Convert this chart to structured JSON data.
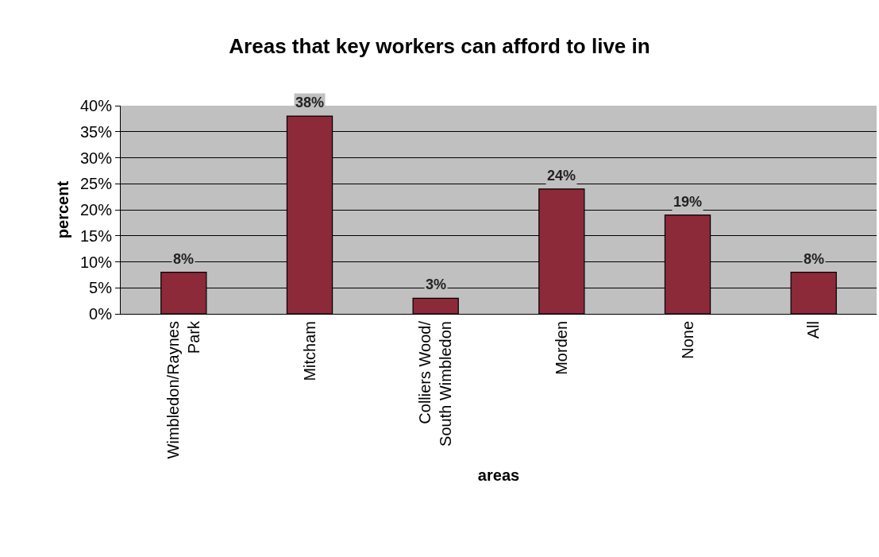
{
  "chart_data": {
    "type": "bar",
    "title": "Areas that key workers can afford to live in",
    "xlabel": "areas",
    "ylabel": "percent",
    "categories": [
      "Wimbledon/Raynes Park",
      "Mitcham",
      "Colliers Wood/South Wimbledon",
      "Morden",
      "None",
      "All"
    ],
    "values": [
      8,
      38,
      3,
      24,
      19,
      8
    ],
    "value_labels": [
      "8%",
      "38%",
      "3%",
      "24%",
      "19%",
      "8%"
    ],
    "color": "#8c2a3a",
    "ylim": [
      0,
      40
    ],
    "yticks": [
      {
        "value": 0,
        "label": "0%"
      },
      {
        "value": 5,
        "label": "5%"
      },
      {
        "value": 10,
        "label": "10%"
      },
      {
        "value": 15,
        "label": "15%"
      },
      {
        "value": 20,
        "label": "20%"
      },
      {
        "value": 25,
        "label": "25%"
      },
      {
        "value": 30,
        "label": "30%"
      },
      {
        "value": 35,
        "label": "35%"
      },
      {
        "value": 40,
        "label": "40%"
      }
    ],
    "grid": "y"
  }
}
